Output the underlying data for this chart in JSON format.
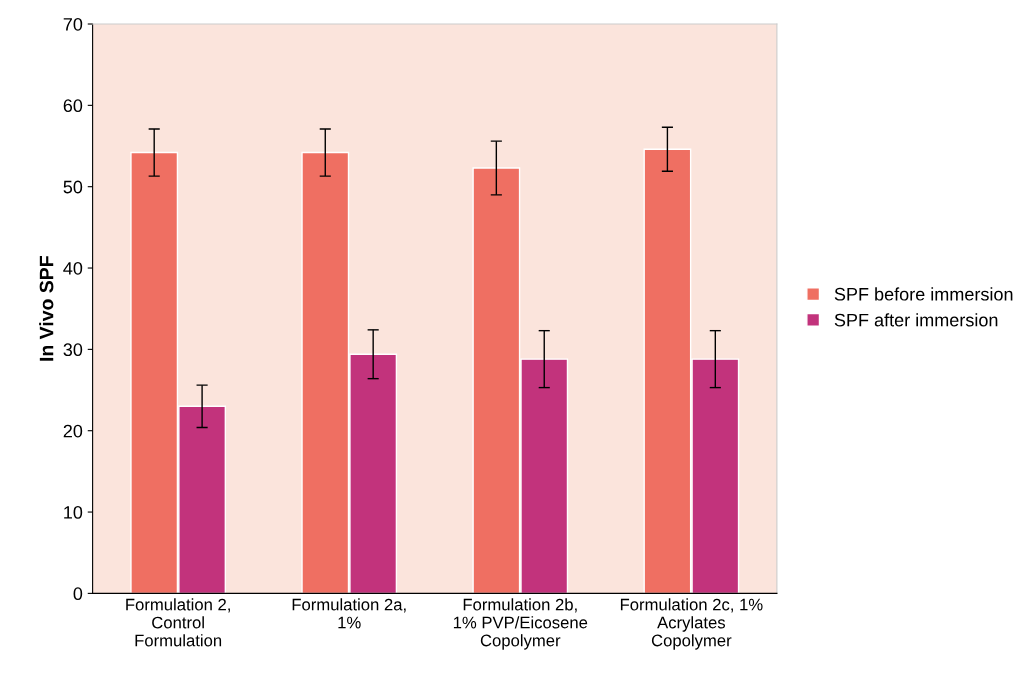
{
  "chart_data": {
    "type": "bar",
    "ylabel": "In Vivo SPF",
    "categories": [
      "Formulation 2,\nControl\nFormulation",
      "Formulation 2a,\n1%",
      "Formulation 2b,\n1% PVP/Eicosene\nCopolymer",
      "Formulation 2c, 1%\nAcrylates\nCopolymer"
    ],
    "series": [
      {
        "name": "SPF before immersion",
        "color": "#ef6f62",
        "values": [
          54.2,
          54.2,
          52.3,
          54.6
        ],
        "errors": [
          2.9,
          2.9,
          3.3,
          2.7
        ]
      },
      {
        "name": "SPF after immersion",
        "color": "#c2337c",
        "values": [
          23.0,
          29.4,
          28.8,
          28.8
        ],
        "errors": [
          2.6,
          3.0,
          3.5,
          3.5
        ]
      }
    ],
    "ylim": [
      0,
      70
    ],
    "yticks": [
      0,
      10,
      20,
      30,
      40,
      50,
      60,
      70
    ],
    "grid": false,
    "legend": "right"
  }
}
